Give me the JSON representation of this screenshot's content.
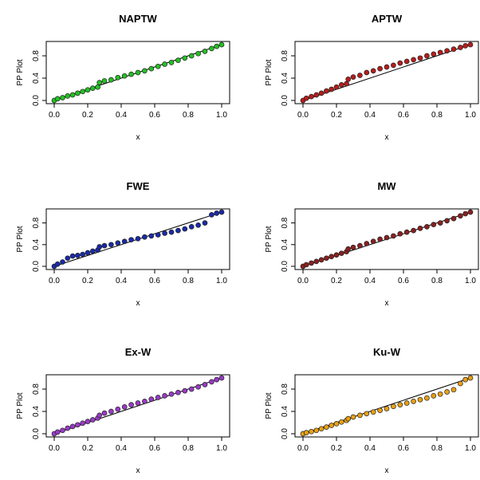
{
  "chart_data": [
    {
      "type": "scatter",
      "title": "NAPTW",
      "xlabel": "x",
      "ylabel": "PP Plot",
      "xlim": [
        0,
        1
      ],
      "ylim": [
        0,
        1
      ],
      "xticks": [
        "0.0",
        "0.2",
        "0.4",
        "0.6",
        "0.8",
        "1.0"
      ],
      "yticks": [
        "0.0",
        "0.4",
        "0.8"
      ],
      "reference_line": "y = x",
      "point_fill": "#22c222",
      "grid": false,
      "points": [
        [
          0.0,
          0.0
        ],
        [
          0.02,
          0.03
        ],
        [
          0.05,
          0.05
        ],
        [
          0.08,
          0.08
        ],
        [
          0.11,
          0.1
        ],
        [
          0.14,
          0.13
        ],
        [
          0.17,
          0.16
        ],
        [
          0.2,
          0.19
        ],
        [
          0.23,
          0.22
        ],
        [
          0.26,
          0.24
        ],
        [
          0.27,
          0.32
        ],
        [
          0.3,
          0.35
        ],
        [
          0.34,
          0.37
        ],
        [
          0.38,
          0.41
        ],
        [
          0.42,
          0.44
        ],
        [
          0.46,
          0.47
        ],
        [
          0.5,
          0.5
        ],
        [
          0.54,
          0.53
        ],
        [
          0.58,
          0.57
        ],
        [
          0.62,
          0.61
        ],
        [
          0.66,
          0.65
        ],
        [
          0.7,
          0.68
        ],
        [
          0.74,
          0.72
        ],
        [
          0.78,
          0.76
        ],
        [
          0.82,
          0.8
        ],
        [
          0.86,
          0.84
        ],
        [
          0.9,
          0.88
        ],
        [
          0.94,
          0.93
        ],
        [
          0.97,
          0.97
        ],
        [
          1.0,
          1.0
        ]
      ]
    },
    {
      "type": "scatter",
      "title": "APTW",
      "xlabel": "x",
      "ylabel": "PP Plot",
      "xlim": [
        0,
        1
      ],
      "ylim": [
        0,
        1
      ],
      "xticks": [
        "0.0",
        "0.2",
        "0.4",
        "0.6",
        "0.8",
        "1.0"
      ],
      "yticks": [
        "0.0",
        "0.4",
        "0.8"
      ],
      "reference_line": "y = x",
      "point_fill": "#b81c1c",
      "grid": false,
      "points": [
        [
          0.0,
          0.0
        ],
        [
          0.02,
          0.04
        ],
        [
          0.05,
          0.07
        ],
        [
          0.08,
          0.1
        ],
        [
          0.11,
          0.13
        ],
        [
          0.14,
          0.17
        ],
        [
          0.17,
          0.2
        ],
        [
          0.2,
          0.24
        ],
        [
          0.23,
          0.28
        ],
        [
          0.26,
          0.3
        ],
        [
          0.27,
          0.38
        ],
        [
          0.3,
          0.42
        ],
        [
          0.34,
          0.45
        ],
        [
          0.38,
          0.5
        ],
        [
          0.42,
          0.53
        ],
        [
          0.46,
          0.57
        ],
        [
          0.5,
          0.6
        ],
        [
          0.54,
          0.63
        ],
        [
          0.58,
          0.67
        ],
        [
          0.62,
          0.7
        ],
        [
          0.66,
          0.73
        ],
        [
          0.7,
          0.76
        ],
        [
          0.74,
          0.8
        ],
        [
          0.78,
          0.83
        ],
        [
          0.82,
          0.86
        ],
        [
          0.86,
          0.89
        ],
        [
          0.9,
          0.92
        ],
        [
          0.94,
          0.95
        ],
        [
          0.97,
          0.98
        ],
        [
          1.0,
          1.0
        ]
      ]
    },
    {
      "type": "scatter",
      "title": "FWE",
      "xlabel": "x",
      "ylabel": "PP Plot",
      "xlim": [
        0,
        1
      ],
      "ylim": [
        0,
        1
      ],
      "xticks": [
        "0.0",
        "0.2",
        "0.4",
        "0.6",
        "0.8",
        "1.0"
      ],
      "yticks": [
        "0.0",
        "0.4",
        "0.8"
      ],
      "reference_line": "y = x",
      "point_fill": "#1a2aa8",
      "grid": false,
      "points": [
        [
          0.0,
          0.0
        ],
        [
          0.02,
          0.04
        ],
        [
          0.05,
          0.08
        ],
        [
          0.08,
          0.15
        ],
        [
          0.11,
          0.19
        ],
        [
          0.14,
          0.2
        ],
        [
          0.17,
          0.22
        ],
        [
          0.2,
          0.25
        ],
        [
          0.23,
          0.28
        ],
        [
          0.26,
          0.3
        ],
        [
          0.27,
          0.36
        ],
        [
          0.3,
          0.38
        ],
        [
          0.34,
          0.4
        ],
        [
          0.38,
          0.43
        ],
        [
          0.42,
          0.46
        ],
        [
          0.46,
          0.49
        ],
        [
          0.5,
          0.51
        ],
        [
          0.54,
          0.54
        ],
        [
          0.58,
          0.56
        ],
        [
          0.62,
          0.58
        ],
        [
          0.66,
          0.61
        ],
        [
          0.7,
          0.63
        ],
        [
          0.74,
          0.66
        ],
        [
          0.78,
          0.69
        ],
        [
          0.82,
          0.73
        ],
        [
          0.86,
          0.76
        ],
        [
          0.9,
          0.8
        ],
        [
          0.94,
          0.95
        ],
        [
          0.97,
          0.98
        ],
        [
          1.0,
          1.0
        ]
      ]
    },
    {
      "type": "scatter",
      "title": "MW",
      "xlabel": "x",
      "ylabel": "PP Plot",
      "xlim": [
        0,
        1
      ],
      "ylim": [
        0,
        1
      ],
      "xticks": [
        "0.0",
        "0.2",
        "0.4",
        "0.6",
        "0.8",
        "1.0"
      ],
      "yticks": [
        "0.0",
        "0.4",
        "0.8"
      ],
      "reference_line": "y = x",
      "point_fill": "#8a2020",
      "grid": false,
      "points": [
        [
          0.0,
          0.0
        ],
        [
          0.02,
          0.03
        ],
        [
          0.05,
          0.06
        ],
        [
          0.08,
          0.09
        ],
        [
          0.11,
          0.12
        ],
        [
          0.14,
          0.15
        ],
        [
          0.17,
          0.18
        ],
        [
          0.2,
          0.21
        ],
        [
          0.23,
          0.24
        ],
        [
          0.26,
          0.27
        ],
        [
          0.27,
          0.32
        ],
        [
          0.3,
          0.35
        ],
        [
          0.34,
          0.38
        ],
        [
          0.38,
          0.42
        ],
        [
          0.42,
          0.46
        ],
        [
          0.46,
          0.5
        ],
        [
          0.5,
          0.53
        ],
        [
          0.54,
          0.56
        ],
        [
          0.58,
          0.6
        ],
        [
          0.62,
          0.63
        ],
        [
          0.66,
          0.66
        ],
        [
          0.7,
          0.7
        ],
        [
          0.74,
          0.73
        ],
        [
          0.78,
          0.77
        ],
        [
          0.82,
          0.8
        ],
        [
          0.86,
          0.84
        ],
        [
          0.9,
          0.88
        ],
        [
          0.94,
          0.93
        ],
        [
          0.97,
          0.97
        ],
        [
          1.0,
          1.0
        ]
      ]
    },
    {
      "type": "scatter",
      "title": "Ex-W",
      "xlabel": "x",
      "ylabel": "PP Plot",
      "xlim": [
        0,
        1
      ],
      "ylim": [
        0,
        1
      ],
      "xticks": [
        "0.0",
        "0.2",
        "0.4",
        "0.6",
        "0.8",
        "1.0"
      ],
      "yticks": [
        "0.0",
        "0.4",
        "0.8"
      ],
      "reference_line": "y = x",
      "point_fill": "#9a3ac8",
      "grid": false,
      "points": [
        [
          0.0,
          0.0
        ],
        [
          0.02,
          0.03
        ],
        [
          0.05,
          0.06
        ],
        [
          0.08,
          0.1
        ],
        [
          0.11,
          0.13
        ],
        [
          0.14,
          0.16
        ],
        [
          0.17,
          0.19
        ],
        [
          0.2,
          0.22
        ],
        [
          0.23,
          0.25
        ],
        [
          0.26,
          0.28
        ],
        [
          0.27,
          0.33
        ],
        [
          0.3,
          0.37
        ],
        [
          0.34,
          0.4
        ],
        [
          0.38,
          0.44
        ],
        [
          0.42,
          0.48
        ],
        [
          0.46,
          0.52
        ],
        [
          0.5,
          0.55
        ],
        [
          0.54,
          0.58
        ],
        [
          0.58,
          0.62
        ],
        [
          0.62,
          0.65
        ],
        [
          0.66,
          0.68
        ],
        [
          0.7,
          0.71
        ],
        [
          0.74,
          0.74
        ],
        [
          0.78,
          0.77
        ],
        [
          0.82,
          0.8
        ],
        [
          0.86,
          0.84
        ],
        [
          0.9,
          0.88
        ],
        [
          0.94,
          0.93
        ],
        [
          0.97,
          0.97
        ],
        [
          1.0,
          1.0
        ]
      ]
    },
    {
      "type": "scatter",
      "title": "Ku-W",
      "xlabel": "x",
      "ylabel": "PP Plot",
      "xlim": [
        0,
        1
      ],
      "ylim": [
        0,
        1
      ],
      "xticks": [
        "0.0",
        "0.2",
        "0.4",
        "0.6",
        "0.8",
        "1.0"
      ],
      "yticks": [
        "0.0",
        "0.4",
        "0.8"
      ],
      "reference_line": "y = x",
      "point_fill": "#e8a012",
      "grid": false,
      "points": [
        [
          0.0,
          0.0
        ],
        [
          0.02,
          0.02
        ],
        [
          0.05,
          0.04
        ],
        [
          0.08,
          0.06
        ],
        [
          0.11,
          0.09
        ],
        [
          0.14,
          0.12
        ],
        [
          0.17,
          0.15
        ],
        [
          0.2,
          0.18
        ],
        [
          0.23,
          0.21
        ],
        [
          0.26,
          0.24
        ],
        [
          0.27,
          0.27
        ],
        [
          0.3,
          0.3
        ],
        [
          0.34,
          0.33
        ],
        [
          0.38,
          0.36
        ],
        [
          0.42,
          0.39
        ],
        [
          0.46,
          0.42
        ],
        [
          0.5,
          0.45
        ],
        [
          0.54,
          0.49
        ],
        [
          0.58,
          0.52
        ],
        [
          0.62,
          0.55
        ],
        [
          0.66,
          0.58
        ],
        [
          0.7,
          0.61
        ],
        [
          0.74,
          0.64
        ],
        [
          0.78,
          0.68
        ],
        [
          0.82,
          0.71
        ],
        [
          0.86,
          0.75
        ],
        [
          0.9,
          0.79
        ],
        [
          0.94,
          0.9
        ],
        [
          0.97,
          0.97
        ],
        [
          1.0,
          1.0
        ]
      ]
    }
  ]
}
